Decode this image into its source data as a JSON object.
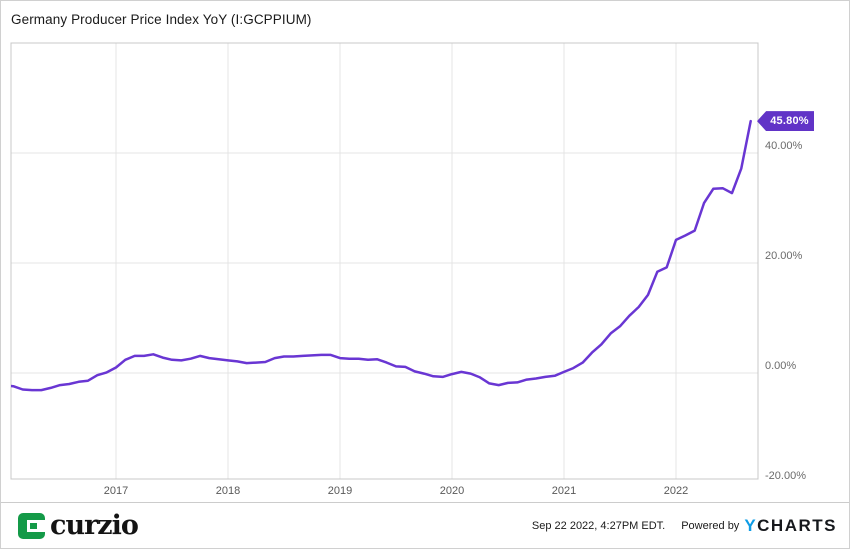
{
  "title": "Germany Producer Price Index YoY (I:GCPPIUM)",
  "badge": {
    "label": "45.80%",
    "value": 45.8
  },
  "y_axis": {
    "ticks": [
      {
        "value": 40,
        "label": "40.00%"
      },
      {
        "value": 20,
        "label": "20.00%"
      },
      {
        "value": 0,
        "label": "0.00%"
      },
      {
        "value": -20,
        "label": "-20.00%"
      }
    ]
  },
  "x_axis": {
    "years": [
      {
        "value": 2017,
        "label": "2017"
      },
      {
        "value": 2018,
        "label": "2018"
      },
      {
        "value": 2019,
        "label": "2019"
      },
      {
        "value": 2020,
        "label": "2020"
      },
      {
        "value": 2021,
        "label": "2021"
      },
      {
        "value": 2022,
        "label": "2022"
      }
    ]
  },
  "chart_data": {
    "type": "line",
    "series_name": "Germany Producer Price Index YoY",
    "unit": "percent",
    "frequency": "monthly",
    "start": "Dec 2015",
    "end": "Aug 2022",
    "last_value": 45.8,
    "ylim": [
      -20,
      60
    ],
    "y_ticks": [
      40,
      20,
      0,
      -20
    ],
    "x_ticks": [
      2017,
      2018,
      2019,
      2020,
      2021,
      2022
    ],
    "grid": true,
    "legend": false,
    "data": [
      {
        "year": "2015",
        "values": [
          -2.3
        ]
      },
      {
        "year": "2016",
        "values": [
          -2.4,
          -3.0,
          -3.1,
          -3.1,
          -2.7,
          -2.2,
          -2.0,
          -1.6,
          -1.4,
          -0.4,
          0.1,
          1.0
        ]
      },
      {
        "year": "2017",
        "values": [
          2.4,
          3.1,
          3.1,
          3.4,
          2.8,
          2.4,
          2.3,
          2.6,
          3.1,
          2.7,
          2.5,
          2.3
        ]
      },
      {
        "year": "2018",
        "values": [
          2.1,
          1.8,
          1.9,
          2.0,
          2.7,
          3.0,
          3.0,
          3.1,
          3.2,
          3.3,
          3.3,
          2.7
        ]
      },
      {
        "year": "2019",
        "values": [
          2.6,
          2.6,
          2.4,
          2.5,
          1.9,
          1.2,
          1.1,
          0.3,
          -0.1,
          -0.6,
          -0.7,
          -0.2
        ]
      },
      {
        "year": "2020",
        "values": [
          0.2,
          -0.1,
          -0.8,
          -1.9,
          -2.2,
          -1.8,
          -1.7,
          -1.2,
          -1.0,
          -0.7,
          -0.5,
          0.2
        ]
      },
      {
        "year": "2021",
        "values": [
          0.9,
          1.9,
          3.7,
          5.2,
          7.2,
          8.5,
          10.4,
          12.0,
          14.2,
          18.4,
          19.2,
          24.2
        ]
      },
      {
        "year": "2022",
        "values": [
          25.0,
          25.9,
          30.9,
          33.5,
          33.6,
          32.7,
          37.2,
          45.8
        ]
      }
    ]
  },
  "footer": {
    "brand": "curzio",
    "timestamp": "Sep 22 2022, 4:27PM EDT.",
    "powered_by": "Powered by",
    "ycharts_y": "Y",
    "ycharts_rest": "CHARTS"
  },
  "colors": {
    "line": "#6936d3",
    "badge_bg": "#6133c7",
    "grid": "#e4e4e4",
    "plot_border": "#c8c8c8",
    "title_text": "#1a1a1a",
    "axis_text": "#6b6b6b",
    "curzio_green": "#149a48",
    "ycharts_blue": "#0d9ce6",
    "ycharts_dark": "#16181c"
  }
}
